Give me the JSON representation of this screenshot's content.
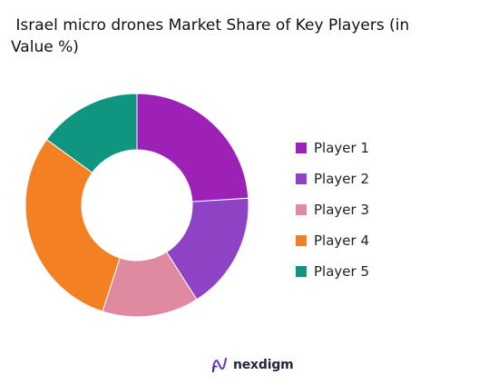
{
  "chart_data": {
    "type": "pie",
    "title": " Israel micro drones Market Share of Key Players (in\nValue %)",
    "donut": true,
    "categories": [
      "Player 1",
      "Player 2",
      "Player 3",
      "Player 4",
      "Player 5"
    ],
    "values": [
      24,
      17,
      14,
      30,
      15
    ],
    "colors": [
      "#9c22b7",
      "#8e43c4",
      "#e08aa2",
      "#f48024",
      "#0f9580"
    ],
    "legend_position": "right"
  },
  "brand": {
    "name": "nexdigm",
    "logo_icon": "nexdigm-logo-icon"
  }
}
